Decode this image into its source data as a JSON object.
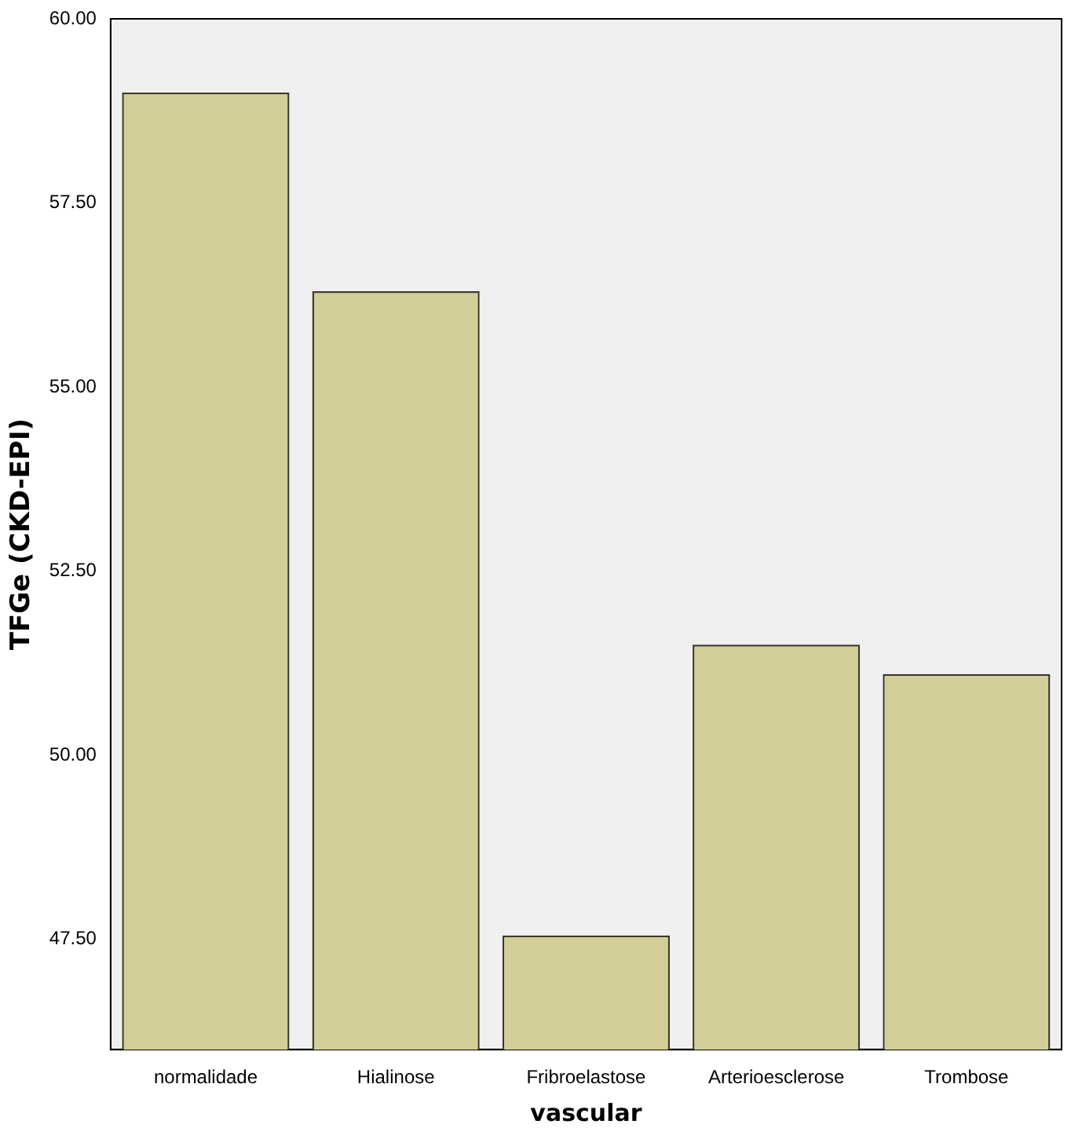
{
  "chart_data": {
    "type": "bar",
    "xlabel": "vascular",
    "ylabel": "TFGe (CKD-EPI)",
    "categories": [
      "normalidade",
      "Hialinose",
      "Fribroelastose",
      "Arterioesclerose",
      "Trombose"
    ],
    "values": [
      59.0,
      56.3,
      47.55,
      51.5,
      51.1
    ],
    "color": "#d3ce97",
    "ylim": [
      46,
      60
    ],
    "yticks": [
      {
        "value": 47.5,
        "label": "47.50"
      },
      {
        "value": 50,
        "label": "50.00"
      },
      {
        "value": 52.5,
        "label": "52.50"
      },
      {
        "value": 55,
        "label": "55.00"
      },
      {
        "value": 57.5,
        "label": "57.50"
      },
      {
        "value": 60,
        "label": "60.00"
      }
    ],
    "grid": false
  }
}
